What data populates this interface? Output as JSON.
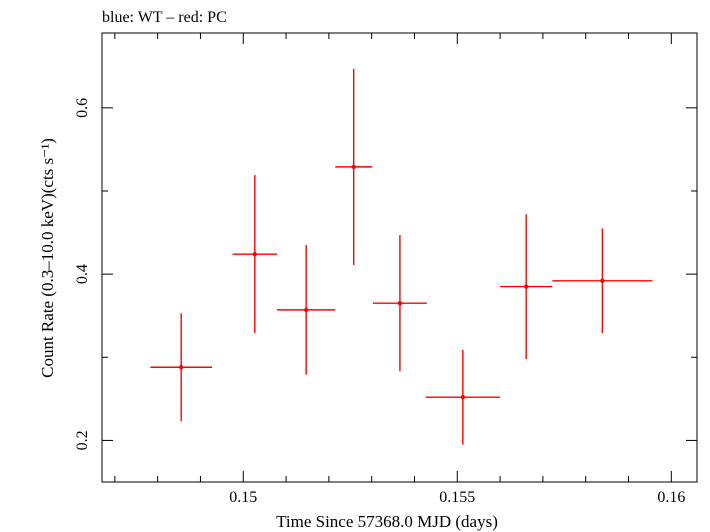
{
  "chart_data": {
    "type": "scatter",
    "title": "blue: WT – red: PC",
    "xlabel": "Time Since 57368.0 MJD (days)",
    "ylabel": "Count Rate (0.3–10.0 keV)(cts s⁻¹)",
    "xlim": [
      0.1467,
      0.1606
    ],
    "ylim": [
      0.15,
      0.69
    ],
    "xticks": [
      0.15,
      0.155,
      0.16
    ],
    "xtick_labels": [
      "0.15",
      "0.155",
      "0.16"
    ],
    "yticks": [
      0.2,
      0.4,
      0.6
    ],
    "ytick_labels": [
      "0.2",
      "0.4",
      "0.6"
    ],
    "grid": false,
    "series": [
      {
        "color": "#ff0000",
        "points": [
          {
            "x": 0.14855,
            "xerr": 0.00072,
            "y": 0.288,
            "yerr_low": 0.065,
            "yerr_high": 0.065
          },
          {
            "x": 0.15027,
            "xerr": 0.00052,
            "y": 0.424,
            "yerr_low": 0.095,
            "yerr_high": 0.095
          },
          {
            "x": 0.15147,
            "xerr": 0.00068,
            "y": 0.357,
            "yerr_low": 0.078,
            "yerr_high": 0.078
          },
          {
            "x": 0.15258,
            "xerr": 0.00043,
            "y": 0.529,
            "yerr_low": 0.118,
            "yerr_high": 0.118
          },
          {
            "x": 0.15366,
            "xerr": 0.00063,
            "y": 0.365,
            "yerr_low": 0.082,
            "yerr_high": 0.082
          },
          {
            "x": 0.15513,
            "xerr": 0.00087,
            "y": 0.252,
            "yerr_low": 0.057,
            "yerr_high": 0.057
          },
          {
            "x": 0.15661,
            "xerr": 0.00061,
            "y": 0.385,
            "yerr_low": 0.087,
            "yerr_high": 0.087
          },
          {
            "x": 0.15839,
            "xerr": 0.00117,
            "y": 0.392,
            "yerr_low": 0.063,
            "yerr_high": 0.063
          }
        ]
      }
    ]
  }
}
